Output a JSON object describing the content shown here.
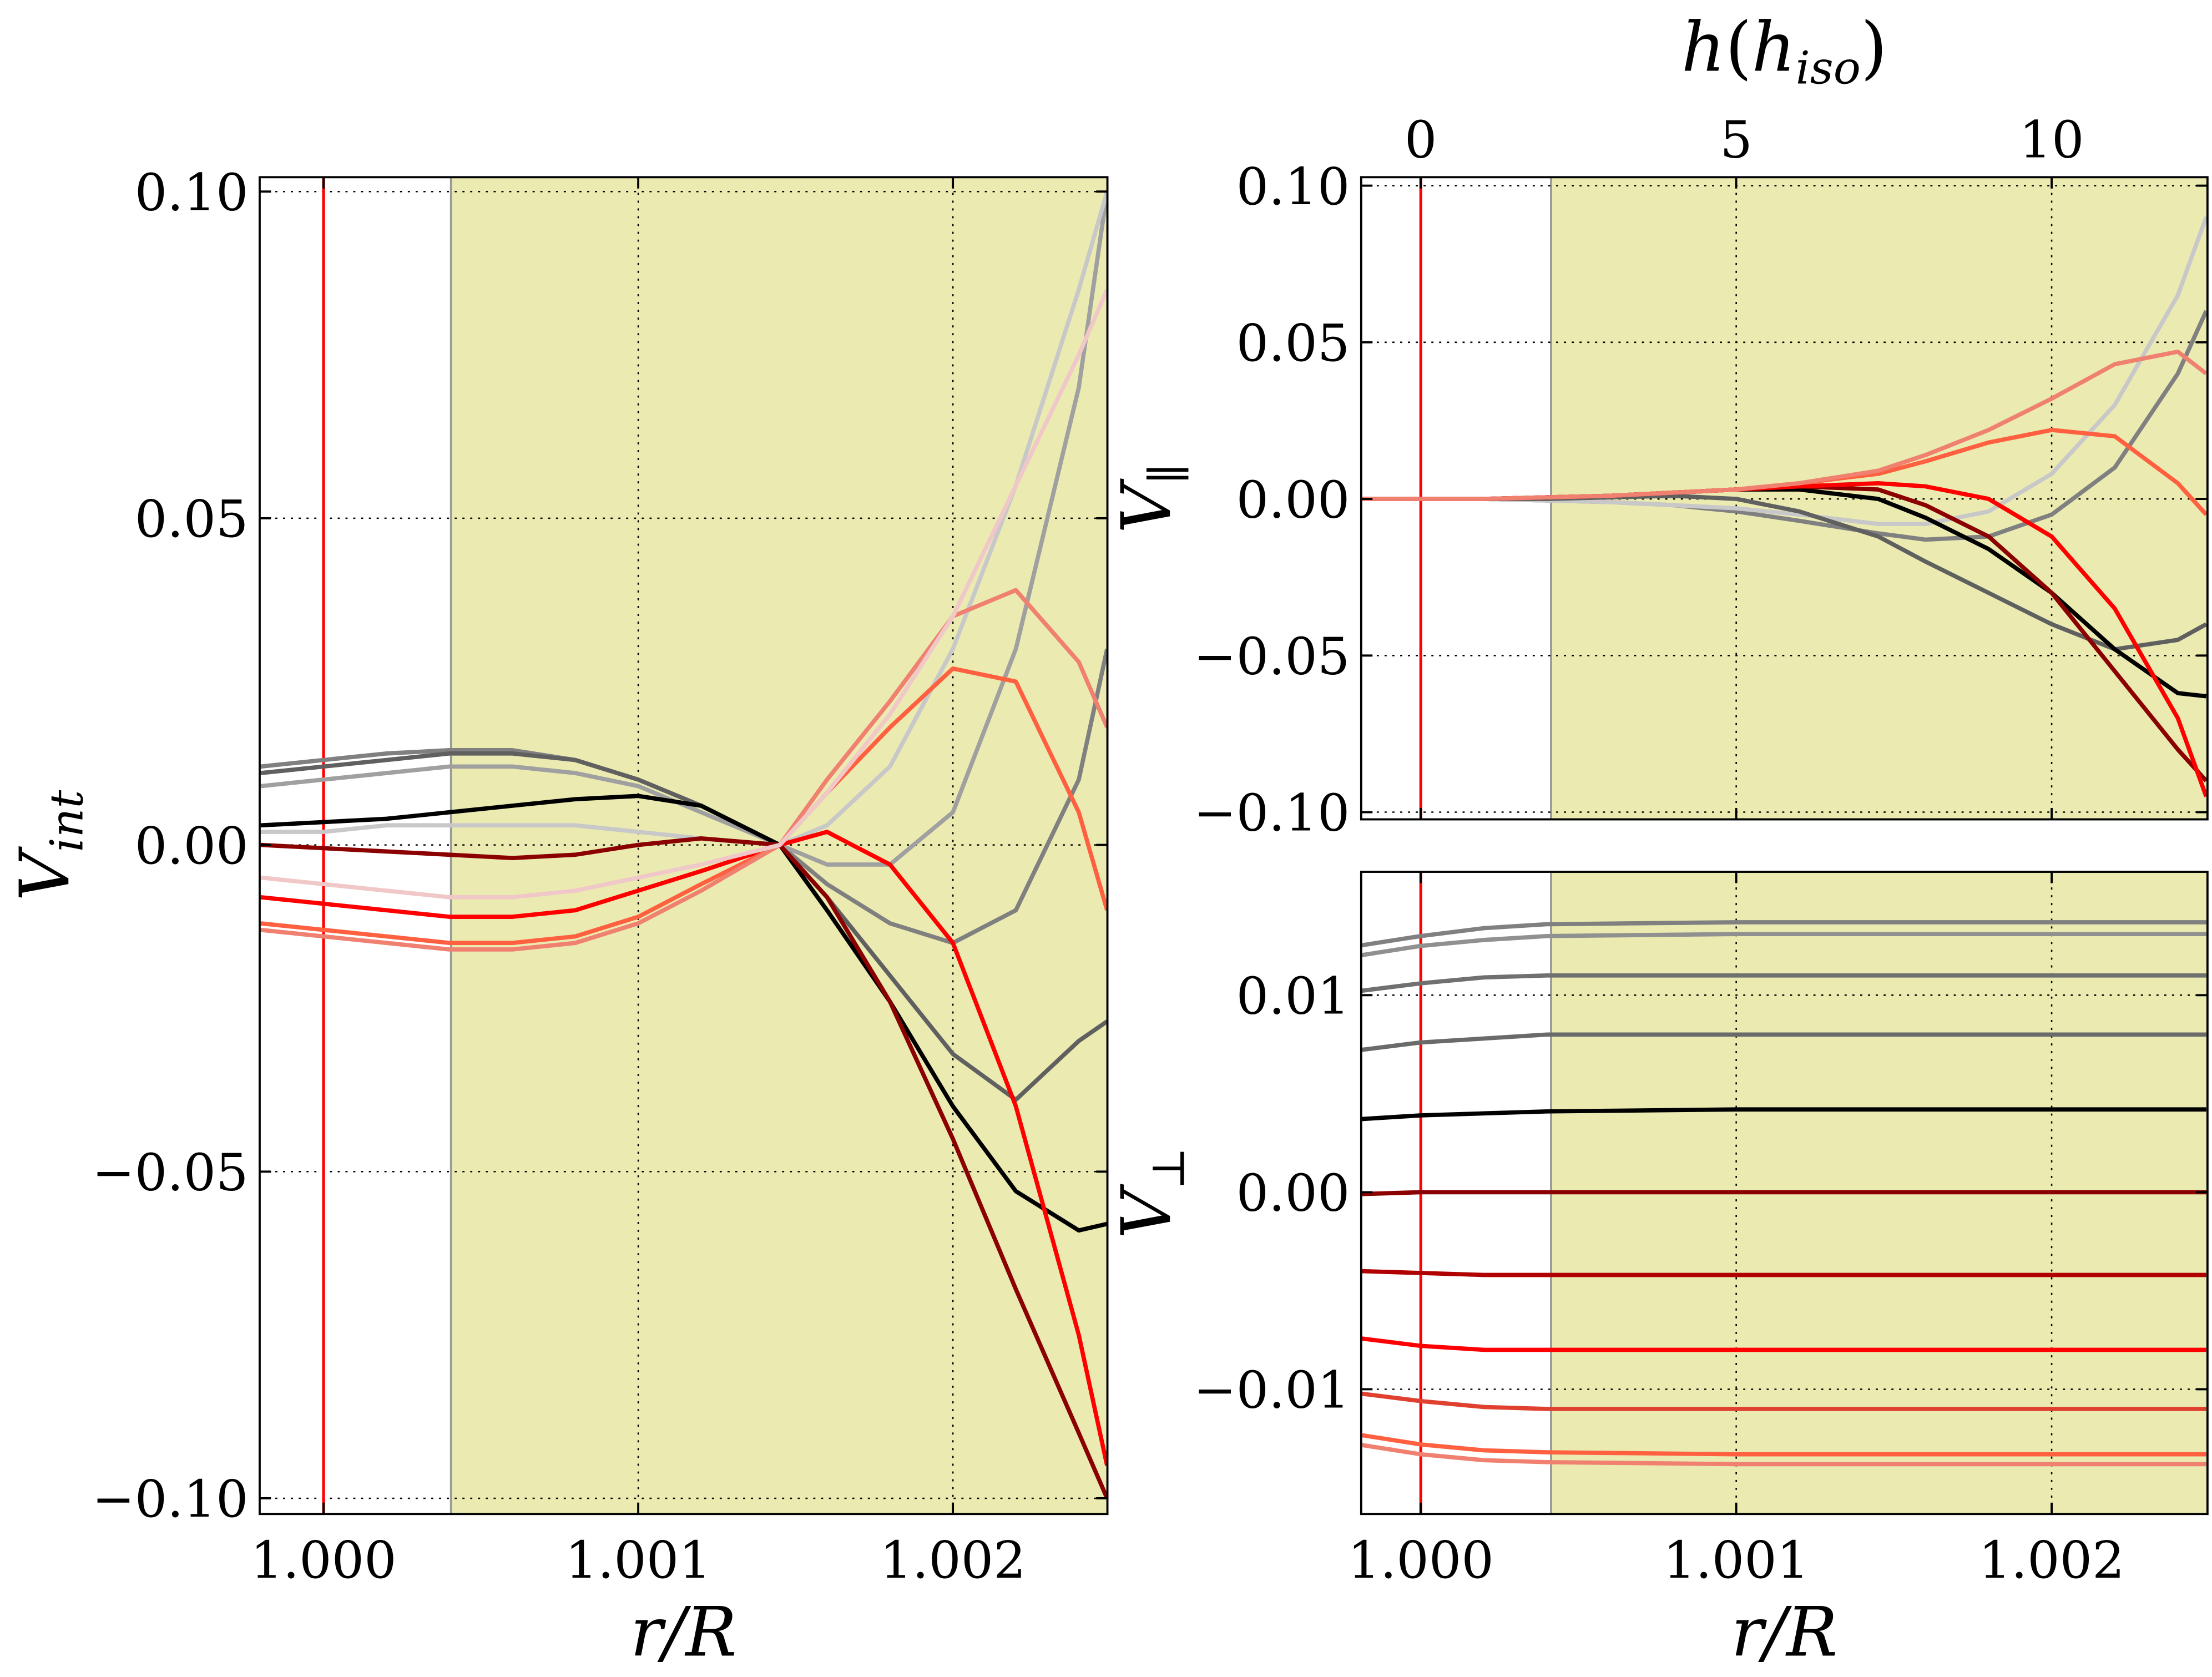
{
  "chart_data": [
    {
      "type": "line",
      "ylabel": {
        "symbol": "V",
        "sub": "int"
      },
      "xlabel": "r/R",
      "xlim": [
        0.999797,
        1.002491
      ],
      "ylim": [
        -0.1024,
        0.1022
      ],
      "xticks": [
        {
          "value": 1.0,
          "label": "1.000"
        },
        {
          "value": 1.001,
          "label": "1.001"
        },
        {
          "value": 1.002,
          "label": "1.002"
        }
      ],
      "yticks": [
        {
          "value": 0.1,
          "label": "0.10"
        },
        {
          "value": 0.05,
          "label": "0.05"
        },
        {
          "value": 0,
          "label": "0.00"
        },
        {
          "value": -0.05,
          "label": "−0.05"
        },
        {
          "value": -0.1,
          "label": "−0.10"
        }
      ],
      "grid": true,
      "shade_from": 1.000405,
      "shade_color": "#ebebb1",
      "vline": 1.0,
      "vline_color": "#ff0000",
      "x": [
        0.9998,
        1.0,
        1.0002,
        1.0004,
        1.0006,
        1.0008,
        1.001,
        1.0012,
        1.00145,
        1.0016,
        1.0018,
        1.002,
        1.0022,
        1.0024,
        1.00249
      ],
      "series": [
        {
          "color": "#808080",
          "values": [
            0.012,
            0.013,
            0.014,
            0.0145,
            0.0145,
            0.013,
            0.01,
            0.006,
            0,
            -0.006,
            -0.012,
            -0.015,
            -0.01,
            0.01,
            0.03
          ]
        },
        {
          "color": "#a0a0a0",
          "values": [
            0.009,
            0.01,
            0.011,
            0.012,
            0.012,
            0.011,
            0.009,
            0.005,
            0,
            -0.003,
            -0.003,
            0.005,
            0.03,
            0.07,
            0.1
          ]
        },
        {
          "color": "#c8c8c8",
          "values": [
            0.002,
            0.002,
            0.003,
            0.003,
            0.003,
            0.003,
            0.002,
            0.001,
            0,
            0.003,
            0.012,
            0.03,
            0.055,
            0.085,
            0.1
          ]
        },
        {
          "color": "#606060",
          "values": [
            0.011,
            0.012,
            0.013,
            0.014,
            0.014,
            0.013,
            0.01,
            0.006,
            0,
            -0.008,
            -0.02,
            -0.032,
            -0.039,
            -0.03,
            -0.027
          ]
        },
        {
          "color": "#000000",
          "values": [
            0.003,
            0.0035,
            0.004,
            0.005,
            0.006,
            0.007,
            0.0075,
            0.006,
            0,
            -0.01,
            -0.024,
            -0.04,
            -0.053,
            -0.059,
            -0.058
          ]
        },
        {
          "color": "#8b0000",
          "values": [
            0,
            -0.0005,
            -0.001,
            -0.0015,
            -0.002,
            -0.0015,
            0,
            0.001,
            0,
            -0.008,
            -0.024,
            -0.045,
            -0.068,
            -0.09,
            -0.1
          ]
        },
        {
          "color": "#ff0000",
          "values": [
            -0.008,
            -0.009,
            -0.01,
            -0.011,
            -0.011,
            -0.01,
            -0.007,
            -0.004,
            0,
            0.002,
            -0.003,
            -0.015,
            -0.04,
            -0.075,
            -0.095
          ]
        },
        {
          "color": "#ff6040",
          "values": [
            -0.012,
            -0.013,
            -0.014,
            -0.015,
            -0.015,
            -0.014,
            -0.011,
            -0.006,
            0,
            0.008,
            0.018,
            0.027,
            0.025,
            0.005,
            -0.01
          ]
        },
        {
          "color": "#f08070",
          "values": [
            -0.013,
            -0.014,
            -0.015,
            -0.016,
            -0.016,
            -0.015,
            -0.012,
            -0.007,
            0,
            0.01,
            0.022,
            0.035,
            0.039,
            0.028,
            0.018
          ]
        },
        {
          "color": "#f0c8c8",
          "values": [
            -0.005,
            -0.006,
            -0.007,
            -0.008,
            -0.008,
            -0.007,
            -0.005,
            -0.003,
            0,
            0.008,
            0.02,
            0.035,
            0.055,
            0.075,
            0.085
          ]
        }
      ]
    },
    {
      "type": "line",
      "ylabel": {
        "symbol": "V",
        "sub": "∥"
      },
      "x2label": {
        "symbol": "h",
        "open": "(",
        "inner": "h",
        "sub": "iso",
        "close": ")"
      },
      "xlim": [
        0.999811,
        1.002494
      ],
      "ylim": [
        -0.1023,
        0.1027
      ],
      "x2lim": [
        -0.944,
        12.47
      ],
      "x2ticks": [
        0,
        5,
        10
      ],
      "xticks": [
        {
          "value": 1.0,
          "label": "1.000"
        },
        {
          "value": 1.001,
          "label": "1.001"
        },
        {
          "value": 1.002,
          "label": "1.002"
        }
      ],
      "yticks": [
        {
          "value": 0.1,
          "label": "0.10"
        },
        {
          "value": 0.05,
          "label": "0.05"
        },
        {
          "value": 0,
          "label": "0.00"
        },
        {
          "value": -0.05,
          "label": "−0.05"
        },
        {
          "value": -0.1,
          "label": "−0.10"
        }
      ],
      "grid": true,
      "shade_from": 1.000413,
      "shade_color": "#ebebb1",
      "vline": 1.0,
      "vline_color": "#ff0000",
      "x": [
        0.9998,
        1.0,
        1.0002,
        1.0004,
        1.0006,
        1.0008,
        1.001,
        1.0012,
        1.00145,
        1.0016,
        1.0018,
        1.002,
        1.0022,
        1.0024,
        1.00249
      ],
      "series": [
        {
          "color": "#808080",
          "values": [
            0,
            0,
            0,
            -0.0005,
            -0.001,
            -0.002,
            -0.004,
            -0.007,
            -0.011,
            -0.013,
            -0.012,
            -0.005,
            0.01,
            0.04,
            0.06
          ]
        },
        {
          "color": "#c8c8c8",
          "values": [
            0,
            0,
            0,
            -0.0005,
            -0.001,
            -0.002,
            -0.003,
            -0.005,
            -0.008,
            -0.008,
            -0.004,
            0.008,
            0.03,
            0.065,
            0.09
          ]
        },
        {
          "color": "#606060",
          "values": [
            0,
            0,
            0,
            0,
            0.0005,
            0.001,
            0,
            -0.004,
            -0.012,
            -0.02,
            -0.03,
            -0.04,
            -0.048,
            -0.045,
            -0.04
          ]
        },
        {
          "color": "#000000",
          "values": [
            0,
            0,
            0,
            0.0005,
            0.001,
            0.002,
            0.003,
            0.003,
            0,
            -0.006,
            -0.016,
            -0.03,
            -0.048,
            -0.062,
            -0.063
          ]
        },
        {
          "color": "#8b0000",
          "values": [
            0,
            0,
            0,
            0.0005,
            0.001,
            0.002,
            0.003,
            0.004,
            0.003,
            -0.002,
            -0.012,
            -0.03,
            -0.055,
            -0.08,
            -0.09
          ]
        },
        {
          "color": "#ff0000",
          "values": [
            0,
            0,
            0,
            0.0005,
            0.001,
            0.002,
            0.003,
            0.004,
            0.005,
            0.004,
            0,
            -0.012,
            -0.035,
            -0.07,
            -0.095
          ]
        },
        {
          "color": "#ff6040",
          "values": [
            0,
            0,
            0,
            0.0005,
            0.001,
            0.002,
            0.003,
            0.005,
            0.008,
            0.012,
            0.018,
            0.022,
            0.02,
            0.005,
            -0.005
          ]
        },
        {
          "color": "#f08070",
          "values": [
            0,
            0,
            0,
            0.0005,
            0.001,
            0.002,
            0.003,
            0.005,
            0.009,
            0.014,
            0.022,
            0.032,
            0.043,
            0.047,
            0.04
          ]
        }
      ]
    },
    {
      "type": "line",
      "ylabel": {
        "symbol": "V",
        "sub": "⊥"
      },
      "xlabel": "r/R",
      "xlim": [
        0.999811,
        1.002494
      ],
      "ylim": [
        -0.01633,
        0.01626
      ],
      "xticks": [
        {
          "value": 1.0,
          "label": "1.000"
        },
        {
          "value": 1.001,
          "label": "1.001"
        },
        {
          "value": 1.002,
          "label": "1.002"
        }
      ],
      "yticks": [
        {
          "value": 0.01,
          "label": "0.01"
        },
        {
          "value": 0,
          "label": "0.00"
        },
        {
          "value": -0.01,
          "label": "−0.01"
        }
      ],
      "grid": true,
      "shade_from": 1.000413,
      "shade_color": "#ebebb1",
      "vline": 1.0,
      "vline_color": "#ff0000",
      "x": [
        0.9998,
        1.0,
        1.0002,
        1.0004,
        1.001,
        1.002,
        1.00249
      ],
      "series": [
        {
          "color": "#808080",
          "values": [
            0.0125,
            0.013,
            0.0134,
            0.0136,
            0.0137,
            0.0137,
            0.0137
          ]
        },
        {
          "color": "#909090",
          "values": [
            0.012,
            0.0125,
            0.0128,
            0.013,
            0.0131,
            0.0131,
            0.0131
          ]
        },
        {
          "color": "#707070",
          "values": [
            0.0102,
            0.0106,
            0.0109,
            0.011,
            0.011,
            0.011,
            0.011
          ]
        },
        {
          "color": "#6a6a6a",
          "values": [
            0.0072,
            0.0076,
            0.0078,
            0.008,
            0.008,
            0.008,
            0.008
          ]
        },
        {
          "color": "#000000",
          "values": [
            0.0037,
            0.0039,
            0.004,
            0.0041,
            0.0042,
            0.0042,
            0.0042
          ]
        },
        {
          "color": "#8b0000",
          "values": [
            -0.0001,
            0,
            0,
            0,
            0,
            0,
            0
          ]
        },
        {
          "color": "#b00000",
          "values": [
            -0.004,
            -0.0041,
            -0.0042,
            -0.0042,
            -0.0042,
            -0.0042,
            -0.0042
          ]
        },
        {
          "color": "#ff0000",
          "values": [
            -0.0074,
            -0.0078,
            -0.008,
            -0.008,
            -0.008,
            -0.008,
            -0.008
          ]
        },
        {
          "color": "#e04030",
          "values": [
            -0.0102,
            -0.0106,
            -0.0109,
            -0.011,
            -0.011,
            -0.011,
            -0.011
          ]
        },
        {
          "color": "#ff6040",
          "values": [
            -0.0123,
            -0.0128,
            -0.0131,
            -0.0132,
            -0.0133,
            -0.0133,
            -0.0133
          ]
        },
        {
          "color": "#f08070",
          "values": [
            -0.0128,
            -0.0133,
            -0.0136,
            -0.0137,
            -0.0138,
            -0.0138,
            -0.0138
          ]
        }
      ]
    }
  ]
}
